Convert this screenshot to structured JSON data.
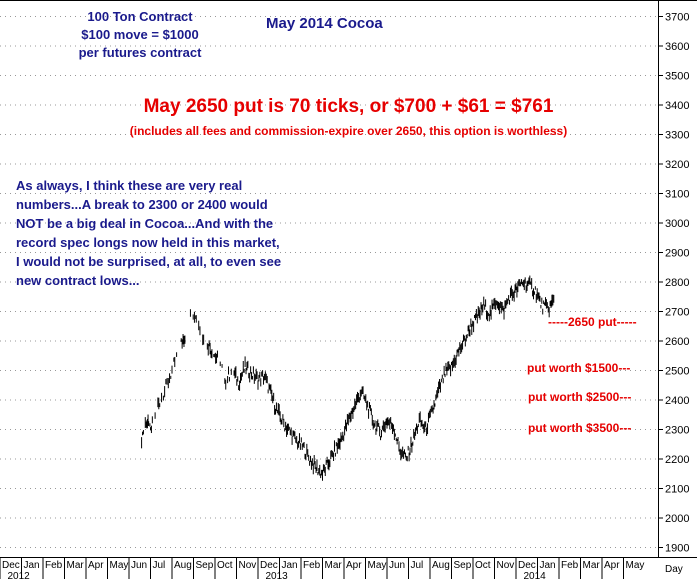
{
  "chart_data": {
    "type": "bar",
    "title": "May 2014 Cocoa",
    "y_ticks": [
      1900,
      2000,
      2100,
      2200,
      2300,
      2400,
      2500,
      2600,
      2700,
      2800,
      2900,
      3000,
      3100,
      3200,
      3300,
      3400,
      3500,
      3600,
      3700
    ],
    "ylim": [
      1850,
      3735
    ],
    "x_months": [
      "Dec",
      "Jan",
      "Feb",
      "Mar",
      "Apr",
      "May",
      "Jun",
      "Jul",
      "Aug",
      "Sep",
      "Oct",
      "Nov",
      "Dec",
      "Jan",
      "Feb",
      "Mar",
      "Apr",
      "May",
      "Jun",
      "Jul",
      "Aug",
      "Sep",
      "Oct",
      "Nov",
      "Dec",
      "Jan",
      "Feb",
      "Mar",
      "Apr",
      "May"
    ],
    "x_years": [
      {
        "label": "2012",
        "month_index": 1
      },
      {
        "label": "2013",
        "month_index": 13
      },
      {
        "label": "2014",
        "month_index": 25
      }
    ],
    "x_axis_label": "Day",
    "series": [
      {
        "values": [
          {
            "t": 6.5,
            "v": 2250
          },
          {
            "t": 6.8,
            "v": 2330
          },
          {
            "t": 7.0,
            "v": 2290
          },
          {
            "t": 7.3,
            "v": 2380
          },
          {
            "t": 7.6,
            "v": 2420
          },
          {
            "t": 8.0,
            "v": 2500
          },
          {
            "t": 8.3,
            "v": 2570
          },
          {
            "t": 8.6,
            "v": 2620
          },
          {
            "t": 8.9,
            "v": 2690
          },
          {
            "t": 9.1,
            "v": 2700
          },
          {
            "t": 9.3,
            "v": 2640
          },
          {
            "t": 9.6,
            "v": 2600
          },
          {
            "t": 9.9,
            "v": 2560
          },
          {
            "t": 10.2,
            "v": 2530
          },
          {
            "t": 10.5,
            "v": 2470
          },
          {
            "t": 10.8,
            "v": 2500
          },
          {
            "t": 11.1,
            "v": 2460
          },
          {
            "t": 11.4,
            "v": 2510
          },
          {
            "t": 11.7,
            "v": 2490
          },
          {
            "t": 12.0,
            "v": 2470
          },
          {
            "t": 12.3,
            "v": 2480
          },
          {
            "t": 12.6,
            "v": 2420
          },
          {
            "t": 12.9,
            "v": 2360
          },
          {
            "t": 13.2,
            "v": 2320
          },
          {
            "t": 13.5,
            "v": 2290
          },
          {
            "t": 13.8,
            "v": 2260
          },
          {
            "t": 14.1,
            "v": 2240
          },
          {
            "t": 14.4,
            "v": 2200
          },
          {
            "t": 14.7,
            "v": 2170
          },
          {
            "t": 15.0,
            "v": 2150
          },
          {
            "t": 15.3,
            "v": 2190
          },
          {
            "t": 15.6,
            "v": 2230
          },
          {
            "t": 15.9,
            "v": 2270
          },
          {
            "t": 16.2,
            "v": 2330
          },
          {
            "t": 16.5,
            "v": 2380
          },
          {
            "t": 16.8,
            "v": 2430
          },
          {
            "t": 17.1,
            "v": 2380
          },
          {
            "t": 17.4,
            "v": 2320
          },
          {
            "t": 17.7,
            "v": 2290
          },
          {
            "t": 18.0,
            "v": 2330
          },
          {
            "t": 18.3,
            "v": 2310
          },
          {
            "t": 18.6,
            "v": 2230
          },
          {
            "t": 18.9,
            "v": 2200
          },
          {
            "t": 19.2,
            "v": 2260
          },
          {
            "t": 19.5,
            "v": 2330
          },
          {
            "t": 19.8,
            "v": 2300
          },
          {
            "t": 20.1,
            "v": 2360
          },
          {
            "t": 20.4,
            "v": 2430
          },
          {
            "t": 20.7,
            "v": 2490
          },
          {
            "t": 21.0,
            "v": 2510
          },
          {
            "t": 21.3,
            "v": 2560
          },
          {
            "t": 21.6,
            "v": 2600
          },
          {
            "t": 21.9,
            "v": 2650
          },
          {
            "t": 22.2,
            "v": 2680
          },
          {
            "t": 22.5,
            "v": 2720
          },
          {
            "t": 22.8,
            "v": 2690
          },
          {
            "t": 23.1,
            "v": 2740
          },
          {
            "t": 23.4,
            "v": 2700
          },
          {
            "t": 23.7,
            "v": 2750
          },
          {
            "t": 24.0,
            "v": 2770
          },
          {
            "t": 24.3,
            "v": 2800
          },
          {
            "t": 24.6,
            "v": 2790
          },
          {
            "t": 24.9,
            "v": 2770
          },
          {
            "t": 25.2,
            "v": 2720
          },
          {
            "t": 25.5,
            "v": 2710
          },
          {
            "t": 25.8,
            "v": 2740
          }
        ]
      }
    ]
  },
  "annotations": {
    "contract_info": "100 Ton Contract\n$100 move = $1000\nper futures contract",
    "headline": "May 2650 put is 70 ticks, or $700 + $61 = $761",
    "subheadline": "(includes all fees and commission-expire over 2650, this option is worthless)",
    "commentary": "As always, I think these are very real\nnumbers...A break to 2300 or 2400 would\nNOT be a big deal in Cocoa...And with the\nrecord spec longs now held in this market,\nI would not be surprised, at all, to even see\nnew contract lows...",
    "levels": [
      {
        "label": "-----2650 put-----",
        "value": 2650
      },
      {
        "label": "put worth $1500---",
        "value": 2500
      },
      {
        "label": "put worth $2500---",
        "value": 2400
      },
      {
        "label": "put worth $3500---",
        "value": 2300
      }
    ]
  },
  "colors": {
    "price": "#000000",
    "blue_text": "#1a1a8c",
    "red_text": "#e60000",
    "grid": "#999999"
  }
}
